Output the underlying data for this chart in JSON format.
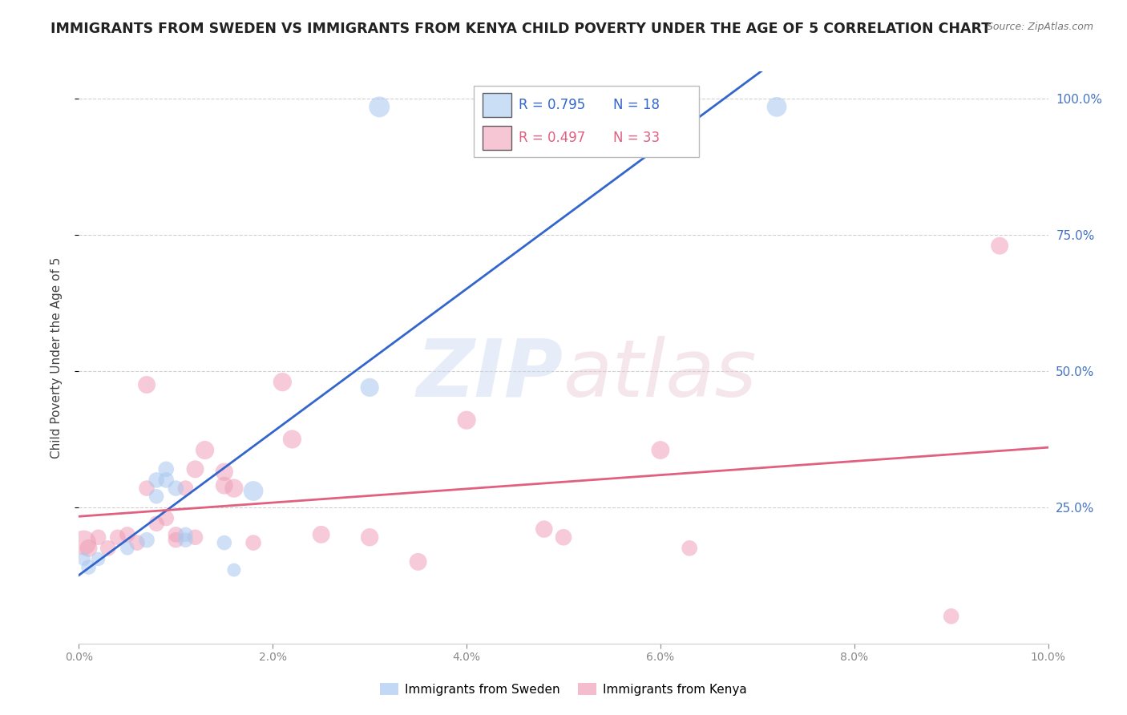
{
  "title": "IMMIGRANTS FROM SWEDEN VS IMMIGRANTS FROM KENYA CHILD POVERTY UNDER THE AGE OF 5 CORRELATION CHART",
  "source": "Source: ZipAtlas.com",
  "ylabel": "Child Poverty Under the Age of 5",
  "watermark_zip": "ZIP",
  "watermark_atlas": "atlas",
  "xlim": [
    0.0,
    0.1
  ],
  "ylim": [
    0.0,
    1.05
  ],
  "xtick_labels": [
    "0.0%",
    "2.0%",
    "4.0%",
    "6.0%",
    "8.0%",
    "10.0%"
  ],
  "xtick_vals": [
    0.0,
    0.02,
    0.04,
    0.06,
    0.08,
    0.1
  ],
  "ytick_labels": [
    "25.0%",
    "50.0%",
    "75.0%",
    "100.0%"
  ],
  "ytick_vals": [
    0.25,
    0.5,
    0.75,
    1.0
  ],
  "sweden_color": "#a8c8f0",
  "kenya_color": "#f0a0b8",
  "sweden_R": 0.795,
  "sweden_N": 18,
  "kenya_R": 0.497,
  "kenya_N": 33,
  "sweden_line_color": "#3366cc",
  "kenya_line_color": "#e06080",
  "sweden_scatter": {
    "x": [
      0.0005,
      0.001,
      0.002,
      0.005,
      0.007,
      0.008,
      0.008,
      0.009,
      0.009,
      0.01,
      0.011,
      0.011,
      0.015,
      0.016,
      0.018,
      0.03,
      0.031,
      0.072
    ],
    "y": [
      0.155,
      0.14,
      0.155,
      0.175,
      0.19,
      0.27,
      0.3,
      0.3,
      0.32,
      0.285,
      0.19,
      0.2,
      0.185,
      0.135,
      0.28,
      0.47,
      0.985,
      0.985
    ],
    "size": [
      150,
      180,
      160,
      160,
      200,
      180,
      200,
      200,
      200,
      200,
      180,
      180,
      180,
      150,
      320,
      280,
      350,
      320
    ]
  },
  "kenya_scatter": {
    "x": [
      0.0005,
      0.001,
      0.002,
      0.003,
      0.004,
      0.005,
      0.006,
      0.007,
      0.007,
      0.008,
      0.009,
      0.01,
      0.01,
      0.011,
      0.012,
      0.012,
      0.013,
      0.015,
      0.015,
      0.016,
      0.018,
      0.021,
      0.022,
      0.025,
      0.03,
      0.035,
      0.04,
      0.048,
      0.05,
      0.06,
      0.063,
      0.09,
      0.095
    ],
    "y": [
      0.185,
      0.175,
      0.195,
      0.175,
      0.195,
      0.2,
      0.185,
      0.285,
      0.475,
      0.22,
      0.23,
      0.19,
      0.2,
      0.285,
      0.195,
      0.32,
      0.355,
      0.29,
      0.315,
      0.285,
      0.185,
      0.48,
      0.375,
      0.2,
      0.195,
      0.15,
      0.41,
      0.21,
      0.195,
      0.355,
      0.175,
      0.05,
      0.73
    ],
    "size": [
      500,
      250,
      200,
      200,
      200,
      200,
      200,
      200,
      250,
      200,
      200,
      200,
      200,
      200,
      200,
      250,
      280,
      250,
      260,
      280,
      200,
      280,
      280,
      250,
      260,
      250,
      280,
      240,
      220,
      270,
      200,
      200,
      250
    ]
  },
  "background_color": "#ffffff",
  "grid_color": "#d0d0d0",
  "right_tick_color": "#4472c4",
  "title_fontsize": 12.5,
  "label_fontsize": 11,
  "tick_fontsize": 10,
  "legend_fontsize": 12
}
